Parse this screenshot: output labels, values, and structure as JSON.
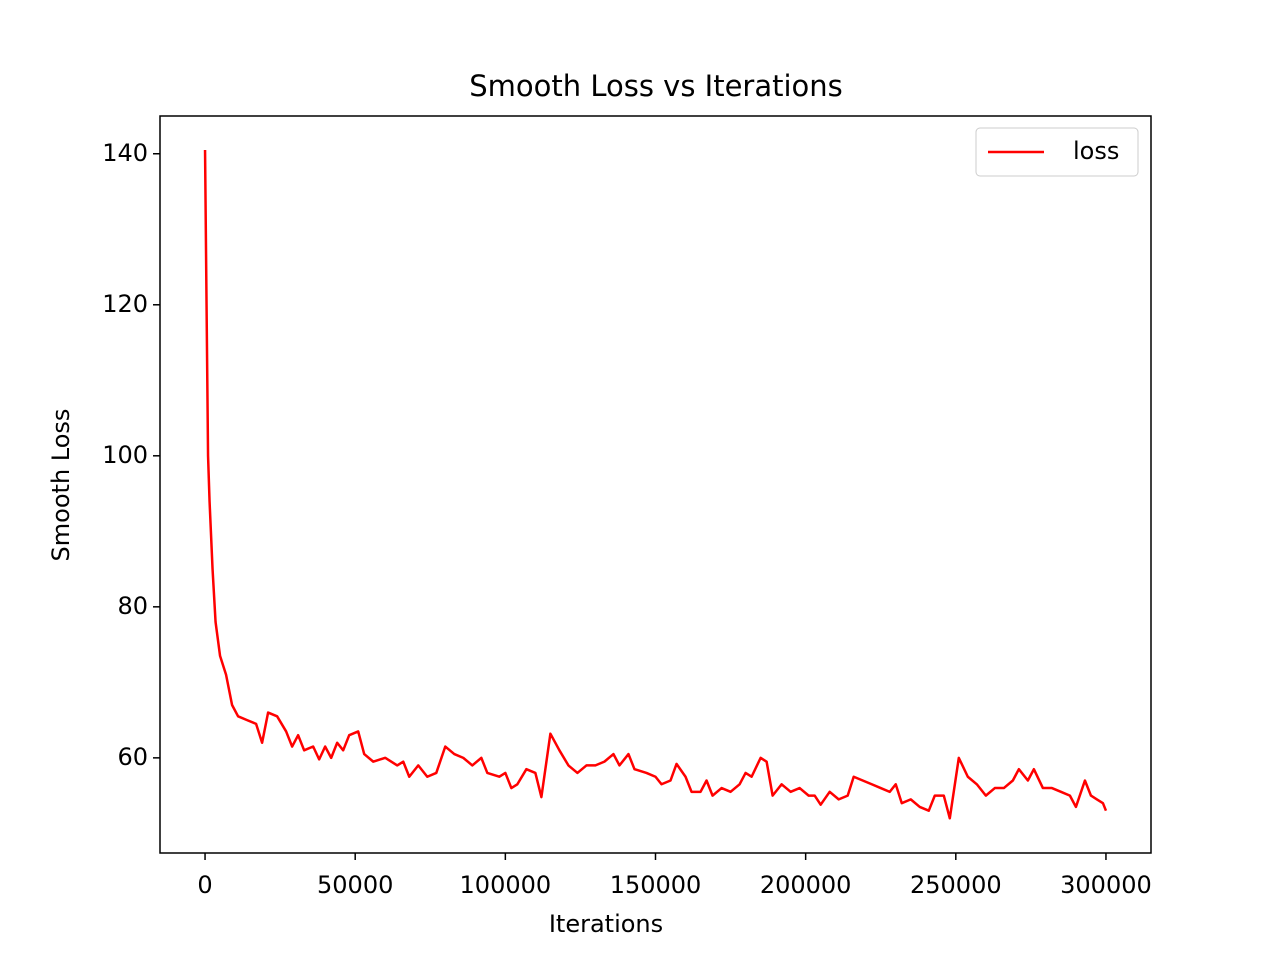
{
  "chart_data": {
    "type": "line",
    "title": "Smooth Loss vs Iterations",
    "x_label": "Iterations",
    "y_label": "Smooth Loss",
    "x": [
      0,
      500,
      1000,
      1500,
      2500,
      3500,
      5000,
      7000,
      9000,
      11000,
      14000,
      17000,
      19000,
      21000,
      24000,
      27000,
      29000,
      31000,
      33000,
      36000,
      38000,
      40000,
      42000,
      44000,
      46000,
      48000,
      51000,
      53000,
      56000,
      60000,
      64000,
      66000,
      68000,
      71000,
      74000,
      77000,
      80000,
      83000,
      86000,
      89000,
      92000,
      94000,
      98000,
      100000,
      102000,
      104000,
      107000,
      110000,
      112000,
      115000,
      118000,
      121000,
      124000,
      127000,
      130000,
      133000,
      136000,
      138000,
      141000,
      143000,
      147000,
      150000,
      152000,
      155000,
      157000,
      160000,
      162000,
      165000,
      167000,
      169000,
      172000,
      175000,
      178000,
      180000,
      182000,
      185000,
      187000,
      189000,
      192000,
      195000,
      198000,
      201000,
      203000,
      205000,
      208000,
      211000,
      214000,
      216000,
      219000,
      222000,
      225000,
      228000,
      230000,
      232000,
      235000,
      238000,
      241000,
      243000,
      246000,
      248000,
      251000,
      254000,
      257000,
      260000,
      263000,
      266000,
      269000,
      271000,
      274000,
      276000,
      279000,
      282000,
      285000,
      288000,
      290000,
      293000,
      295000,
      297000,
      299000,
      300000
    ],
    "series": [
      {
        "name": "loss",
        "color": "#ff0000",
        "values": [
          140.5,
          120,
          100,
          94,
          85,
          78,
          73.5,
          71,
          67,
          65.5,
          65,
          64.5,
          62,
          66,
          65.5,
          63.5,
          61.5,
          63,
          61,
          61.5,
          59.8,
          61.5,
          60,
          62,
          61,
          63,
          63.5,
          60.5,
          59.5,
          60,
          59,
          59.5,
          57.5,
          59,
          57.5,
          58,
          61.5,
          60.5,
          60,
          59,
          60,
          58,
          57.5,
          58,
          56,
          56.5,
          58.5,
          58,
          54.8,
          63.2,
          61,
          59,
          58,
          59,
          59,
          59.5,
          60.5,
          59,
          60.5,
          58.5,
          58,
          57.5,
          56.5,
          57,
          59.2,
          57.5,
          55.5,
          55.5,
          57,
          55,
          56,
          55.5,
          56.5,
          58,
          57.5,
          60,
          59.5,
          55,
          56.5,
          55.5,
          56,
          55,
          55,
          53.8,
          55.5,
          54.5,
          55,
          57.5,
          57,
          56.5,
          56,
          55.5,
          56.5,
          54,
          54.5,
          53.5,
          53,
          55,
          55,
          52,
          60,
          57.5,
          56.5,
          55,
          56,
          56,
          57,
          58.5,
          57,
          58.5,
          56,
          56,
          55.5,
          55,
          53.5,
          57,
          55,
          54.5,
          54,
          53
        ]
      }
    ],
    "xlim": [
      -15000,
      315000
    ],
    "xticks": [
      0,
      50000,
      100000,
      150000,
      200000,
      250000,
      300000
    ],
    "ylim": [
      47.4,
      145.0
    ],
    "yticks": [
      60,
      80,
      100,
      120,
      140
    ],
    "legend": "upper right"
  }
}
